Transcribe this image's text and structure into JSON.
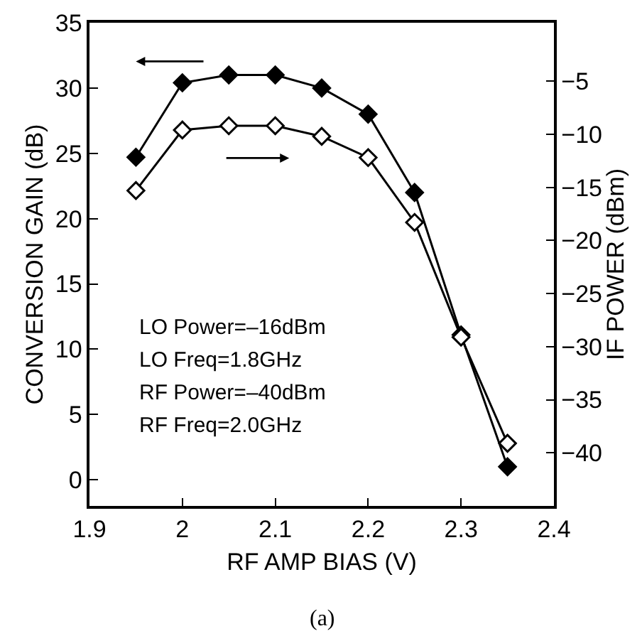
{
  "chart_data": {
    "type": "line",
    "xlabel": "RF AMP BIAS (V)",
    "ylabel": "CONVERSION GAIN (dB)",
    "y2label": "IF POWER (dBm)",
    "x": [
      1.95,
      2.0,
      2.05,
      2.1,
      2.15,
      2.2,
      2.25,
      2.3,
      2.35
    ],
    "series": [
      {
        "color": "#000000",
        "values": [
          24.7,
          30.4,
          31,
          31,
          30,
          28,
          22,
          11.1,
          1
        ]
      },
      {
        "color": "#000000",
        "axis": "y2",
        "values": [
          -15.3,
          -9.6,
          -9.2,
          -9.2,
          -10.2,
          -12.2,
          -18.3,
          -29.1,
          -39.1
        ]
      }
    ],
    "xlim": [
      1.9,
      2.4
    ],
    "xticks": [
      1.9,
      2,
      2.1,
      2.2,
      2.3,
      2.4
    ],
    "ylim": [
      -2,
      35
    ],
    "yticks": [
      0,
      5,
      10,
      15,
      20,
      25,
      30,
      35
    ],
    "y2lim": [
      -45,
      0.5
    ],
    "y2ticks": [
      -5,
      -10,
      -15,
      -20,
      -25,
      -30,
      -35,
      -40
    ],
    "marker": "diamond",
    "line_style": "solid",
    "grid": false,
    "annotations": [
      "LO Power=–16dBm",
      "LO Freq=1.8GHz",
      "RF Power=–40dBm",
      "RF Freq=2.0GHz",
      "(a)"
    ]
  }
}
